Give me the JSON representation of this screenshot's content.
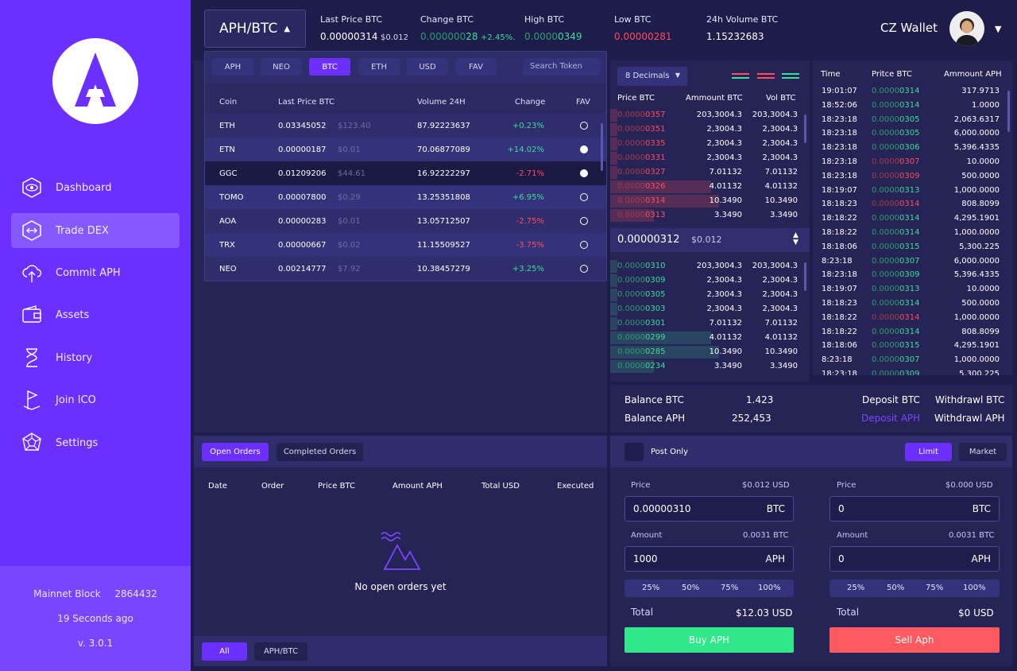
{
  "sidebar": {
    "nav": [
      {
        "label": "Dashboard",
        "icon": "eye-icon"
      },
      {
        "label": "Trade DEX",
        "icon": "swap-arrows-icon"
      },
      {
        "label": "Commit APH",
        "icon": "cloud-upload-icon"
      },
      {
        "label": "Assets",
        "icon": "wallet-icon"
      },
      {
        "label": "History",
        "icon": "hourglass-icon"
      },
      {
        "label": "Join ICO",
        "icon": "flag-icon"
      },
      {
        "label": "Settings",
        "icon": "dodecahedron-icon"
      }
    ],
    "network_label": "Mainnet Block",
    "block_number": "2864432",
    "last_update": "19 Seconds ago",
    "version": "v. 3.0.1"
  },
  "header": {
    "pair": "APH/BTC",
    "stats": [
      {
        "label": "Last Price BTC",
        "value": "0.00000314",
        "extra": "$0.012"
      },
      {
        "label": "Change BTC",
        "value_dim": "0.000000",
        "value_hi": "28",
        "extra": "+2.45%."
      },
      {
        "label": "High BTC",
        "value_dim": "0.0000",
        "value_hi": "0349"
      },
      {
        "label": "Low BTC",
        "value": "0.00000281"
      },
      {
        "label": "24h Volume BTC",
        "value": "1.15232683"
      }
    ],
    "wallet_name": "CZ Wallet"
  },
  "token_dropdown": {
    "tabs": [
      "APH",
      "NEO",
      "BTC",
      "ETH",
      "USD",
      "FAV"
    ],
    "active_tab": "BTC",
    "search_placeholder": "Search Token",
    "columns": [
      "Coin",
      "Last Price BTC",
      "Volume 24H",
      "Change",
      "FAV"
    ],
    "rows": [
      {
        "coin": "ETH",
        "price": "0.03345052",
        "usd": "$123.40",
        "volume": "87.92223637",
        "change": "+0.23%",
        "fav": false
      },
      {
        "coin": "ETN",
        "price": "0.00000187",
        "usd": "$0.01",
        "volume": "70.06877089",
        "change": "+14.02%",
        "fav": true
      },
      {
        "coin": "GGC",
        "price": "0.01209206",
        "usd": "$44.61",
        "volume": "16.92222297",
        "change": "-2.71%",
        "fav": true
      },
      {
        "coin": "TOMO",
        "price": "0.00007800",
        "usd": "$0.29",
        "volume": "13.25351808",
        "change": "+6.95%",
        "fav": false
      },
      {
        "coin": "AOA",
        "price": "0.00000283",
        "usd": "$0.01",
        "volume": "13.05712507",
        "change": "-2.75%",
        "fav": false
      },
      {
        "coin": "TRX",
        "price": "0.00000667",
        "usd": "$0.02",
        "volume": "11.15509527",
        "change": "-3.75%",
        "fav": false
      },
      {
        "coin": "NEO",
        "price": "0.00214777",
        "usd": "$7.92",
        "volume": "10.38457279",
        "change": "+3.25%",
        "fav": false
      }
    ]
  },
  "orderbook": {
    "decimals": "8 Decimals",
    "columns": [
      "Price BTC",
      "Ammount BTC",
      "Vol BTC"
    ],
    "asks": [
      {
        "dim": "0.0000",
        "hi": "0357",
        "amount": "203,3004.3",
        "vol": "203,3004.3",
        "depth": 0.05
      },
      {
        "dim": "0.0000",
        "hi": "0351",
        "amount": "2,3004.3",
        "vol": "2,3004.3",
        "depth": 0.05
      },
      {
        "dim": "0.0000",
        "hi": "0335",
        "amount": "2,3004.3",
        "vol": "2,3004.3",
        "depth": 0.05
      },
      {
        "dim": "0.0000",
        "hi": "0331",
        "amount": "2,3004.3",
        "vol": "2,3004.3",
        "depth": 0.05
      },
      {
        "dim": "0.0000",
        "hi": "0327",
        "amount": "7.01132",
        "vol": "7.01132",
        "depth": 0.05
      },
      {
        "dim": "0.0000",
        "hi": "0326",
        "amount": "4.01132",
        "vol": "4.01132",
        "depth": 0.7
      },
      {
        "dim": "0.0000",
        "hi": "0314",
        "amount": "10.3490",
        "vol": "10.3490",
        "depth": 0.75
      },
      {
        "dim": "0.0000",
        "hi": "0313",
        "amount": "3.3490",
        "vol": "3.3490",
        "depth": 0.3
      }
    ],
    "mid_price": "0.00000312",
    "mid_usd": "$0.012",
    "bids": [
      {
        "dim": "0.0000",
        "hi": "0310",
        "amount": "203,3004.3",
        "vol": "203,3004.3",
        "depth": 0.05
      },
      {
        "dim": "0.0000",
        "hi": "0309",
        "amount": "2,3004.3",
        "vol": "2,3004.3",
        "depth": 0.05
      },
      {
        "dim": "0.0000",
        "hi": "0305",
        "amount": "2,3004.3",
        "vol": "2,3004.3",
        "depth": 0.05
      },
      {
        "dim": "0.0000",
        "hi": "0303",
        "amount": "2,3004.3",
        "vol": "2,3004.3",
        "depth": 0.05
      },
      {
        "dim": "0.0000",
        "hi": "0301",
        "amount": "7.01132",
        "vol": "7.01132",
        "depth": 0.05
      },
      {
        "dim": "0.0000",
        "hi": "0299",
        "amount": "4.01132",
        "vol": "4.01132",
        "depth": 0.7
      },
      {
        "dim": "0.0000",
        "hi": "0285",
        "amount": "10.3490",
        "vol": "10.3490",
        "depth": 0.75
      },
      {
        "dim": "0.0000",
        "hi": "0234",
        "amount": "3.3490",
        "vol": "3.3490",
        "depth": 0.3
      }
    ]
  },
  "trades": {
    "columns": [
      "Time",
      "Pritce BTC",
      "Ammount APH"
    ],
    "rows": [
      {
        "time": "19:01:07",
        "dim": "0.0000",
        "hi": "0314",
        "side": "buy",
        "amount": "317.9713"
      },
      {
        "time": "18:52:06",
        "dim": "0.0000",
        "hi": "0314",
        "side": "buy",
        "amount": "1.0000"
      },
      {
        "time": "18:23:18",
        "dim": "0.0000",
        "hi": "0305",
        "side": "buy",
        "amount": "2,063.6317"
      },
      {
        "time": "18:23:18",
        "dim": "0.0000",
        "hi": "0305",
        "side": "buy",
        "amount": "6,000.0000"
      },
      {
        "time": "18:23:18",
        "dim": "0.0000",
        "hi": "0306",
        "side": "buy",
        "amount": "5,396.4335"
      },
      {
        "time": "18:23:18",
        "dim": "0.0000",
        "hi": "0307",
        "side": "sell",
        "amount": "10.0000"
      },
      {
        "time": "18:23:18",
        "dim": "0.0000",
        "hi": "0309",
        "side": "sell",
        "amount": "500.0000"
      },
      {
        "time": "18:19:07",
        "dim": "0.0000",
        "hi": "0313",
        "side": "buy",
        "amount": "1,000.0000"
      },
      {
        "time": "18:18:23",
        "dim": "0.0000",
        "hi": "0314",
        "side": "sell",
        "amount": "808.8099"
      },
      {
        "time": "18:18:22",
        "dim": "0.0000",
        "hi": "0314",
        "side": "buy",
        "amount": "4,295.1901"
      },
      {
        "time": "18:18:22",
        "dim": "0.0000",
        "hi": "0314",
        "side": "buy",
        "amount": "1,000.0000"
      },
      {
        "time": "18:18:06",
        "dim": "0.0000",
        "hi": "0315",
        "side": "buy",
        "amount": "5,300.225"
      },
      {
        "time": "8:23:18",
        "dim": "0.0000",
        "hi": "0307",
        "side": "buy",
        "amount": "6,000.0000"
      },
      {
        "time": "18:23:18",
        "dim": "0.0000",
        "hi": "0309",
        "side": "buy",
        "amount": "5,396.4335"
      },
      {
        "time": "18:19:07",
        "dim": "0.0000",
        "hi": "0313",
        "side": "buy",
        "amount": "10.0000"
      },
      {
        "time": "18:18:23",
        "dim": "0.0000",
        "hi": "0314",
        "side": "buy",
        "amount": "500.0000"
      },
      {
        "time": "18:18:22",
        "dim": "0.0000",
        "hi": "0314",
        "side": "sell",
        "amount": "1,000.0000"
      },
      {
        "time": "18:18:22",
        "dim": "0.0000",
        "hi": "0314",
        "side": "buy",
        "amount": "808.8099"
      },
      {
        "time": "18:18:06",
        "dim": "0.0000",
        "hi": "0315",
        "side": "buy",
        "amount": "4,295.1901"
      },
      {
        "time": "8:23:18",
        "dim": "0.0000",
        "hi": "0307",
        "side": "buy",
        "amount": "1,000.0000"
      },
      {
        "time": "18:23:18",
        "dim": "0.0000",
        "hi": "0309",
        "side": "buy",
        "amount": "5,300.225"
      }
    ]
  },
  "balances": {
    "btc_label": "Balance BTC",
    "btc_value": "1.423",
    "aph_label": "Balance APH",
    "aph_value": "252,453",
    "deposit_btc": "Deposit BTC",
    "withdraw_btc": "Withdrawl BTC",
    "deposit_aph": "Deposit APH",
    "withdraw_aph": "Withdrawl APH"
  },
  "orders": {
    "tabs": [
      "Open Orders",
      "Completed Orders"
    ],
    "columns": [
      "Date",
      "Order",
      "Price BTC",
      "Amount APH",
      "Total USD",
      "Executed"
    ],
    "empty_text": "No open orders yet",
    "filters": [
      "All",
      "APH/BTC"
    ]
  },
  "trade_form": {
    "post_only": "Post Only",
    "types": [
      "Limit",
      "Market"
    ],
    "buy": {
      "price_label": "Price",
      "price_usd": "$0.012 USD",
      "price_value": "0.00000310",
      "price_unit": "BTC",
      "amount_label": "Amount",
      "amount_btc": "0.0031 BTC",
      "amount_value": "1000",
      "amount_unit": "APH",
      "percents": [
        "25%",
        "50%",
        "75%",
        "100%"
      ],
      "total_label": "Total",
      "total_value": "$12.03 USD",
      "button": "Buy APH"
    },
    "sell": {
      "price_label": "Price",
      "price_usd": "$0.000 USD",
      "price_value": "0",
      "price_unit": "BTC",
      "amount_label": "Amount",
      "amount_btc": "0.0031 BTC",
      "amount_value": "0",
      "amount_unit": "APH",
      "percents": [
        "25%",
        "50%",
        "75%",
        "100%"
      ],
      "total_label": "Total",
      "total_value": "$0 USD",
      "button": "Sell Aph"
    }
  },
  "colors": {
    "accent": "#6b2fff",
    "green": "#3ddc97",
    "red": "#ff4d5a",
    "buy_button": "#2ee88a",
    "sell_button": "#ff5a5f"
  }
}
